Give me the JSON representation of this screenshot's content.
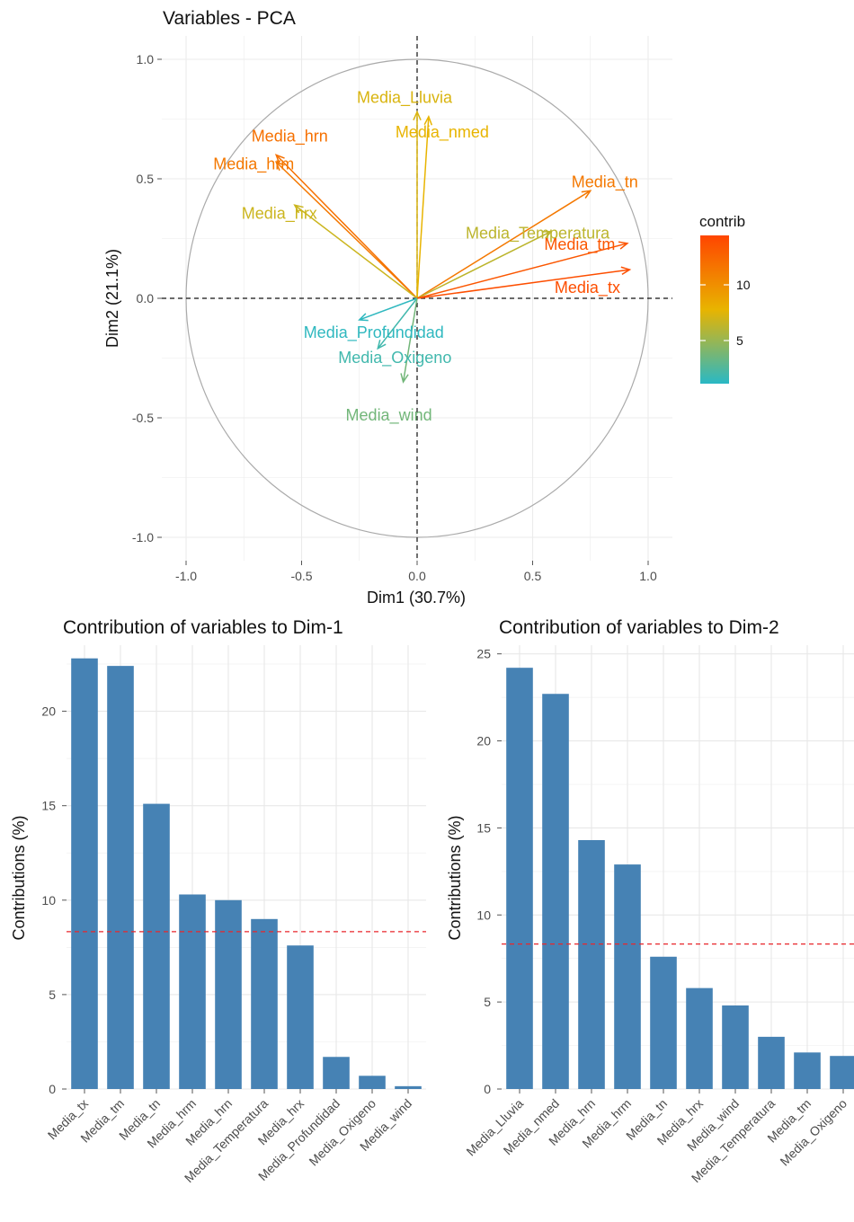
{
  "pca": {
    "title": "Variables - PCA",
    "xlabel": "Dim1 (30.7%)",
    "ylabel": "Dim2 (21.1%)",
    "xlim": [
      -1.0,
      1.0
    ],
    "ylim": [
      -1.0,
      1.0
    ],
    "ticks": [
      "-1.0",
      "-0.5",
      "0.0",
      "0.5",
      "1.0"
    ],
    "legend_title": "contrib",
    "legend_ticks": [
      "5",
      "10"
    ],
    "colors": {
      "low": "#29b8c5",
      "mid": "#e8b400",
      "high": "#ff4500",
      "circle": "#aaaaaa",
      "grid": "#ebebeb"
    }
  },
  "chart_data": [
    {
      "type": "scatter",
      "subtype": "pca-variable-arrows",
      "title": "Variables - PCA",
      "xlabel": "Dim1 (30.7%)",
      "ylabel": "Dim2 (21.1%)",
      "xlim": [
        -1.0,
        1.0
      ],
      "ylim": [
        -1.0,
        1.0
      ],
      "legend": "right",
      "legend_title": "contrib",
      "color_range": [
        1,
        14
      ],
      "points": [
        {
          "name": "Media_Lluvia",
          "x": 0.0,
          "y": 0.78,
          "contrib": 7.0
        },
        {
          "name": "Media_nmed",
          "x": 0.05,
          "y": 0.76,
          "contrib": 7.5
        },
        {
          "name": "Media_hrn",
          "x": -0.61,
          "y": 0.6,
          "contrib": 11.5
        },
        {
          "name": "Media_hrm",
          "x": -0.61,
          "y": 0.57,
          "contrib": 11.0
        },
        {
          "name": "Media_hrx",
          "x": -0.53,
          "y": 0.39,
          "contrib": 6.5
        },
        {
          "name": "Media_tn",
          "x": 0.75,
          "y": 0.45,
          "contrib": 11.0
        },
        {
          "name": "Media_Temperatura",
          "x": 0.58,
          "y": 0.28,
          "contrib": 6.0
        },
        {
          "name": "Media_tm",
          "x": 0.91,
          "y": 0.23,
          "contrib": 13.0
        },
        {
          "name": "Media_tx",
          "x": 0.92,
          "y": 0.12,
          "contrib": 13.5
        },
        {
          "name": "Media_Profundidad",
          "x": -0.25,
          "y": -0.09,
          "contrib": 1.2
        },
        {
          "name": "Media_Oxigeno",
          "x": -0.17,
          "y": -0.21,
          "contrib": 1.8
        },
        {
          "name": "Media_wind",
          "x": -0.06,
          "y": -0.35,
          "contrib": 3.5
        }
      ]
    },
    {
      "type": "bar",
      "title": "Contribution of variables to Dim-1",
      "ylabel": "Contributions (%)",
      "ylim": [
        0,
        23.5
      ],
      "yticks": [
        "0",
        "5",
        "10",
        "15",
        "20"
      ],
      "reference_line": 8.33,
      "categories": [
        "Media_tx",
        "Media_tm",
        "Media_tn",
        "Media_hrm",
        "Media_hrn",
        "Media_Temperatura",
        "Media_hrx",
        "Media_Profundidad",
        "Media_Oxigeno",
        "Media_wind"
      ],
      "values": [
        22.8,
        22.4,
        15.1,
        10.3,
        10.0,
        9.0,
        7.6,
        1.7,
        0.7,
        0.15
      ]
    },
    {
      "type": "bar",
      "title": "Contribution of variables to Dim-2",
      "ylabel": "Contributions (%)",
      "ylim": [
        0,
        25.5
      ],
      "yticks": [
        "0",
        "5",
        "10",
        "15",
        "20",
        "25"
      ],
      "reference_line": 8.33,
      "categories": [
        "Media_Lluvia",
        "Media_nmed",
        "Media_hrn",
        "Media_hrm",
        "Media_tn",
        "Media_hrx",
        "Media_wind",
        "Media_Temperatura",
        "Media_tm",
        "Media_Oxigeno"
      ],
      "values": [
        24.2,
        22.7,
        14.3,
        12.9,
        7.6,
        5.8,
        4.8,
        3.0,
        2.1,
        1.9
      ]
    }
  ],
  "bar_color": "#4682b4",
  "ref_line_color": "#e8262b"
}
